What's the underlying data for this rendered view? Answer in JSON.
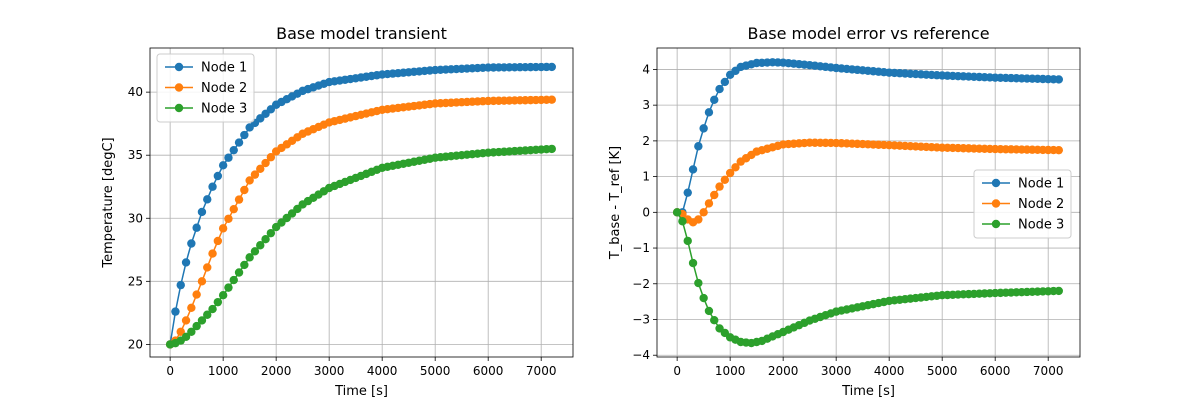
{
  "chart_data": [
    {
      "type": "line",
      "title": "Base model transient",
      "xlabel": "Time [s]",
      "ylabel": "Temperature [degC]",
      "xlim": [
        -380,
        7600
      ],
      "ylim": [
        19.0,
        43.5
      ],
      "xticks": [
        0,
        1000,
        2000,
        3000,
        4000,
        5000,
        6000,
        7000
      ],
      "yticks": [
        20,
        25,
        30,
        35,
        40
      ],
      "xtick_labels": [
        "0",
        "1000",
        "2000",
        "3000",
        "4000",
        "5000",
        "6000",
        "7000"
      ],
      "ytick_labels": [
        "20",
        "25",
        "30",
        "35",
        "40"
      ],
      "grid": true,
      "legend": "upper-left",
      "x_range": [
        0,
        7200
      ],
      "x_step": 100,
      "series": [
        {
          "name": "Node 1",
          "color": "#1f77b4",
          "knots": [
            [
              0,
              20.0
            ],
            [
              100,
              22.6
            ],
            [
              200,
              24.7
            ],
            [
              300,
              26.5
            ],
            [
              400,
              28.0
            ],
            [
              600,
              30.5
            ],
            [
              800,
              32.5
            ],
            [
              1000,
              34.2
            ],
            [
              1500,
              37.2
            ],
            [
              2000,
              39.0
            ],
            [
              2500,
              40.1
            ],
            [
              3000,
              40.8
            ],
            [
              4000,
              41.4
            ],
            [
              5000,
              41.75
            ],
            [
              6000,
              41.95
            ],
            [
              7200,
              42.0
            ]
          ]
        },
        {
          "name": "Node 2",
          "color": "#ff7f0e",
          "knots": [
            [
              0,
              20.0
            ],
            [
              100,
              20.3
            ],
            [
              200,
              21.0
            ],
            [
              300,
              21.9
            ],
            [
              400,
              22.9
            ],
            [
              600,
              25.0
            ],
            [
              800,
              27.2
            ],
            [
              1000,
              29.2
            ],
            [
              1500,
              33.0
            ],
            [
              2000,
              35.3
            ],
            [
              2500,
              36.7
            ],
            [
              3000,
              37.6
            ],
            [
              4000,
              38.6
            ],
            [
              5000,
              39.1
            ],
            [
              6000,
              39.3
            ],
            [
              7200,
              39.4
            ]
          ]
        },
        {
          "name": "Node 3",
          "color": "#2ca02c",
          "knots": [
            [
              0,
              20.0
            ],
            [
              100,
              20.1
            ],
            [
              200,
              20.3
            ],
            [
              300,
              20.6
            ],
            [
              400,
              21.0
            ],
            [
              600,
              21.9
            ],
            [
              800,
              22.8
            ],
            [
              1000,
              23.9
            ],
            [
              1500,
              26.9
            ],
            [
              2000,
              29.3
            ],
            [
              2500,
              31.1
            ],
            [
              3000,
              32.4
            ],
            [
              4000,
              34.0
            ],
            [
              5000,
              34.8
            ],
            [
              6000,
              35.2
            ],
            [
              7200,
              35.5
            ]
          ]
        }
      ]
    },
    {
      "type": "line",
      "title": "Base model error vs reference",
      "xlabel": "Time [s]",
      "ylabel": "T_base - T_ref [K]",
      "xlim": [
        -380,
        7600
      ],
      "ylim": [
        -4.05,
        4.6
      ],
      "xticks": [
        0,
        1000,
        2000,
        3000,
        4000,
        5000,
        6000,
        7000
      ],
      "yticks": [
        -4,
        -3,
        -2,
        -1,
        0,
        1,
        2,
        3,
        4
      ],
      "xtick_labels": [
        "0",
        "1000",
        "2000",
        "3000",
        "4000",
        "5000",
        "6000",
        "7000"
      ],
      "ytick_labels": [
        "−4",
        "−3",
        "−2",
        "−1",
        "0",
        "1",
        "2",
        "3",
        "4"
      ],
      "grid": true,
      "legend": "center-right",
      "x_range": [
        0,
        7200
      ],
      "x_step": 100,
      "series": [
        {
          "name": "Node 1",
          "color": "#1f77b4",
          "knots": [
            [
              0,
              0.0
            ],
            [
              100,
              0.0
            ],
            [
              200,
              0.55
            ],
            [
              300,
              1.2
            ],
            [
              400,
              1.85
            ],
            [
              500,
              2.35
            ],
            [
              600,
              2.8
            ],
            [
              700,
              3.15
            ],
            [
              800,
              3.45
            ],
            [
              1000,
              3.85
            ],
            [
              1200,
              4.07
            ],
            [
              1500,
              4.18
            ],
            [
              1800,
              4.2
            ],
            [
              2000,
              4.19
            ],
            [
              2500,
              4.12
            ],
            [
              3000,
              4.04
            ],
            [
              4000,
              3.91
            ],
            [
              5000,
              3.83
            ],
            [
              6000,
              3.77
            ],
            [
              7200,
              3.72
            ]
          ]
        },
        {
          "name": "Node 2",
          "color": "#ff7f0e",
          "knots": [
            [
              0,
              0.0
            ],
            [
              100,
              -0.05
            ],
            [
              200,
              -0.2
            ],
            [
              300,
              -0.28
            ],
            [
              400,
              -0.2
            ],
            [
              500,
              0.0
            ],
            [
              600,
              0.25
            ],
            [
              800,
              0.72
            ],
            [
              1000,
              1.1
            ],
            [
              1200,
              1.42
            ],
            [
              1500,
              1.7
            ],
            [
              2000,
              1.9
            ],
            [
              2500,
              1.95
            ],
            [
              3000,
              1.94
            ],
            [
              4000,
              1.88
            ],
            [
              5000,
              1.81
            ],
            [
              6000,
              1.77
            ],
            [
              7200,
              1.74
            ]
          ]
        },
        {
          "name": "Node 3",
          "color": "#2ca02c",
          "knots": [
            [
              0,
              0.0
            ],
            [
              100,
              -0.25
            ],
            [
              200,
              -0.8
            ],
            [
              300,
              -1.42
            ],
            [
              400,
              -1.98
            ],
            [
              500,
              -2.4
            ],
            [
              600,
              -2.76
            ],
            [
              700,
              -3.02
            ],
            [
              800,
              -3.25
            ],
            [
              1000,
              -3.5
            ],
            [
              1200,
              -3.63
            ],
            [
              1400,
              -3.66
            ],
            [
              1600,
              -3.6
            ],
            [
              2000,
              -3.35
            ],
            [
              2500,
              -3.03
            ],
            [
              3000,
              -2.78
            ],
            [
              4000,
              -2.48
            ],
            [
              5000,
              -2.32
            ],
            [
              6000,
              -2.26
            ],
            [
              7200,
              -2.2
            ]
          ]
        }
      ]
    }
  ]
}
